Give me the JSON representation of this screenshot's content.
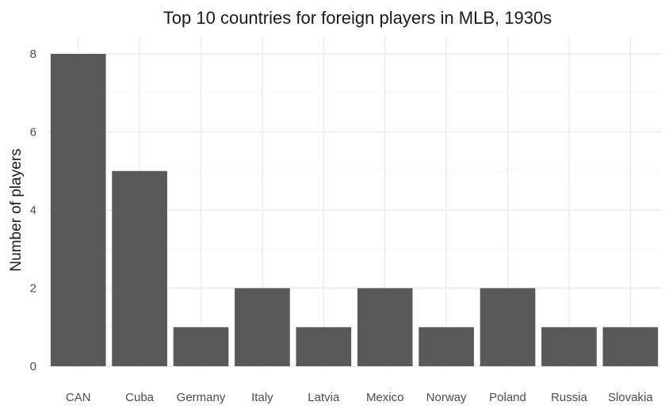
{
  "chart_data": {
    "type": "bar",
    "title": "Top 10 countries for foreign players in MLB, 1930s",
    "xlabel": "",
    "ylabel": "Number of players",
    "categories": [
      "CAN",
      "Cuba",
      "Germany",
      "Italy",
      "Latvia",
      "Mexico",
      "Norway",
      "Poland",
      "Russia",
      "Slovakia"
    ],
    "values": [
      8,
      5,
      1,
      2,
      1,
      2,
      1,
      2,
      1,
      1
    ],
    "ylim": [
      0,
      8.4
    ],
    "yticks": [
      "0",
      "2",
      "4",
      "6",
      "8"
    ],
    "grid": true,
    "bar_color": "#595959",
    "legend": "none"
  }
}
